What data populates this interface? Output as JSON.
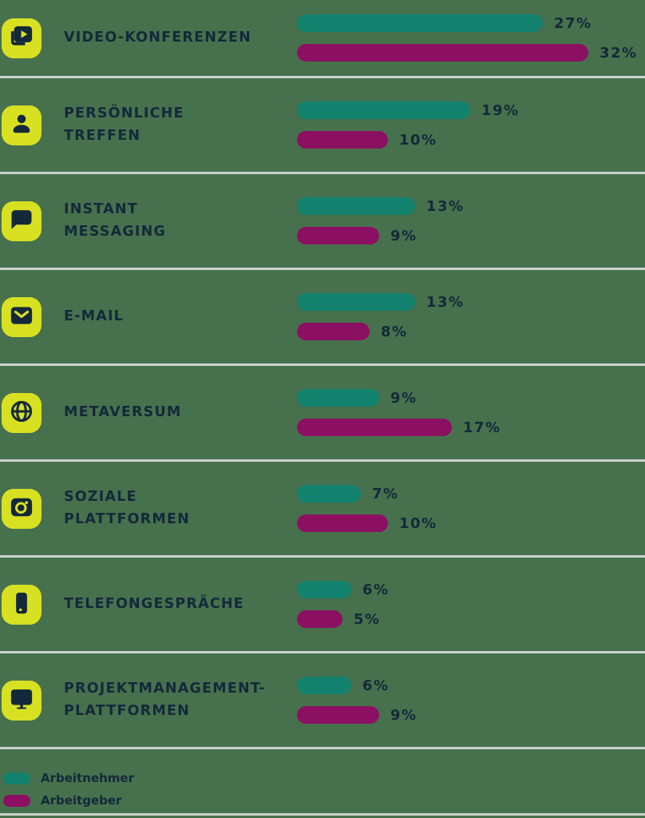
{
  "chart_data": {
    "type": "bar",
    "orientation": "horizontal",
    "unit": "%",
    "title": "",
    "categories": [
      "Video-Konferenzen",
      "Persönliche Treffen",
      "Instant Messaging",
      "E-Mail",
      "Metaversum",
      "Soziale Plattformen",
      "Telefongespräche",
      "Projektmanagement-Plattformen"
    ],
    "series": [
      {
        "name": "Arbeitnehmer",
        "color": "#12826F",
        "values": [
          27,
          19,
          13,
          13,
          9,
          7,
          6,
          6
        ]
      },
      {
        "name": "Arbeitgeber",
        "color": "#8C1062",
        "values": [
          32,
          10,
          9,
          8,
          17,
          10,
          5,
          9
        ]
      }
    ],
    "xlim": [
      0,
      35
    ],
    "grid": false,
    "legend_position": "bottom-left",
    "value_labels": "end-of-bar"
  },
  "colors": {
    "background": "#47714D",
    "icon_background": "#D8E022",
    "text": "#13293A",
    "divider": "#CBD2CB",
    "Arbeitnehmer": "#12826F",
    "Arbeitgeber": "#8C1062"
  },
  "rows": [
    {
      "icon": "video-library-icon",
      "label_lines": [
        "VIDEO-KONFERENZEN"
      ],
      "bars": [
        {
          "series": "Arbeitnehmer",
          "value": 27,
          "value_label": "27%"
        },
        {
          "series": "Arbeitgeber",
          "value": 32,
          "value_label": "32%"
        }
      ]
    },
    {
      "icon": "person-icon",
      "label_lines": [
        "PERSÖNLICHE",
        "TREFFEN"
      ],
      "bars": [
        {
          "series": "Arbeitnehmer",
          "value": 19,
          "value_label": "19%"
        },
        {
          "series": "Arbeitgeber",
          "value": 10,
          "value_label": "10%"
        }
      ]
    },
    {
      "icon": "chat-bubble-icon",
      "label_lines": [
        "INSTANT",
        "MESSAGING"
      ],
      "bars": [
        {
          "series": "Arbeitnehmer",
          "value": 13,
          "value_label": "13%"
        },
        {
          "series": "Arbeitgeber",
          "value": 9,
          "value_label": "9%"
        }
      ]
    },
    {
      "icon": "mail-icon",
      "label_lines": [
        "E-MAIL"
      ],
      "bars": [
        {
          "series": "Arbeitnehmer",
          "value": 13,
          "value_label": "13%"
        },
        {
          "series": "Arbeitgeber",
          "value": 8,
          "value_label": "8%"
        }
      ]
    },
    {
      "icon": "globe-icon",
      "label_lines": [
        "METAVERSUM"
      ],
      "bars": [
        {
          "series": "Arbeitnehmer",
          "value": 9,
          "value_label": "9%"
        },
        {
          "series": "Arbeitgeber",
          "value": 17,
          "value_label": "17%"
        }
      ]
    },
    {
      "icon": "camera-icon",
      "label_lines": [
        "SOZIALE",
        "PLATTFORMEN"
      ],
      "bars": [
        {
          "series": "Arbeitnehmer",
          "value": 7,
          "value_label": "7%"
        },
        {
          "series": "Arbeitgeber",
          "value": 10,
          "value_label": "10%"
        }
      ]
    },
    {
      "icon": "smartphone-icon",
      "label_lines": [
        "TELEFONGESPRÄCHE"
      ],
      "bars": [
        {
          "series": "Arbeitnehmer",
          "value": 6,
          "value_label": "6%"
        },
        {
          "series": "Arbeitgeber",
          "value": 5,
          "value_label": "5%"
        }
      ]
    },
    {
      "icon": "monitor-icon",
      "label_lines": [
        "PROJEKTMANAGEMENT-",
        "PLATTFORMEN"
      ],
      "bars": [
        {
          "series": "Arbeitnehmer",
          "value": 6,
          "value_label": "6%"
        },
        {
          "series": "Arbeitgeber",
          "value": 9,
          "value_label": "9%"
        }
      ]
    }
  ],
  "legend": [
    {
      "label": "Arbeitnehmer",
      "series": "Arbeitnehmer"
    },
    {
      "label": "Arbeitgeber",
      "series": "Arbeitgeber"
    }
  ]
}
